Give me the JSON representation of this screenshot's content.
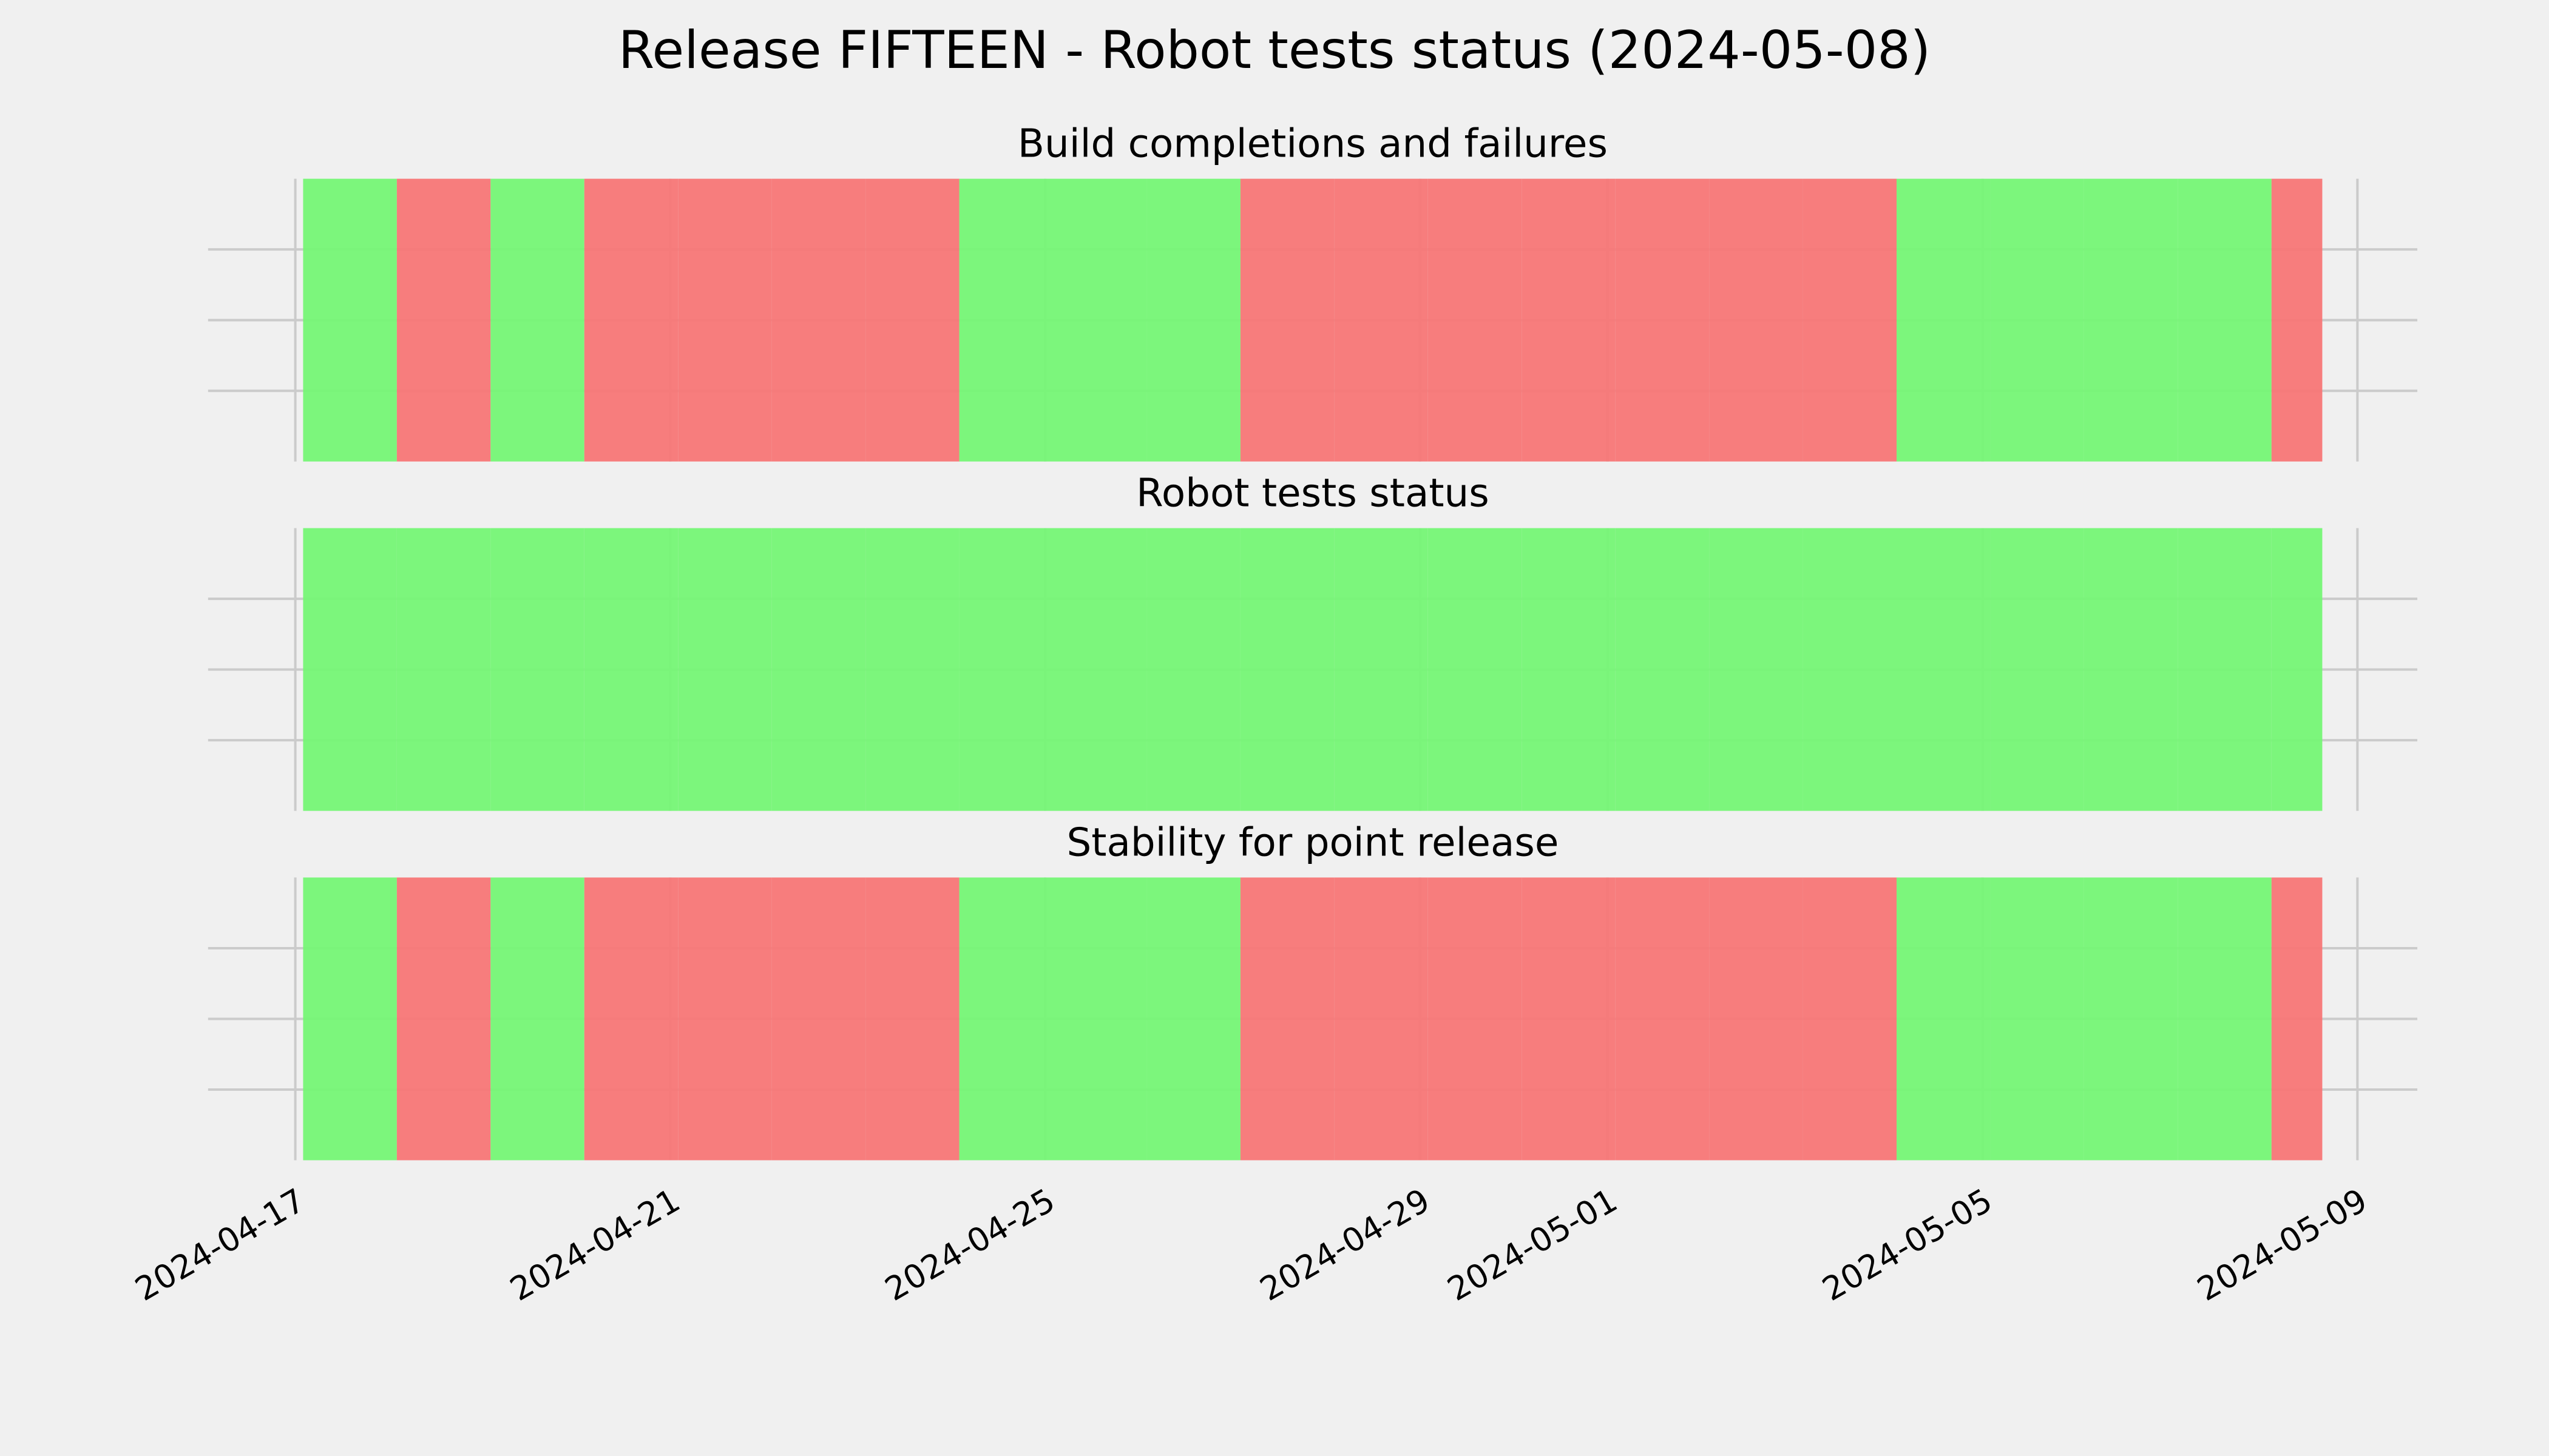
{
  "title": "Release FIFTEEN - Robot tests status (2024-05-08)",
  "chart_data": [
    {
      "type": "timeline",
      "title": "Build completions and failures",
      "x": [
        "2024-04-17T02:00",
        "2024-04-18T02:00",
        "2024-04-19T02:00",
        "2024-04-20T02:00",
        "2024-04-21T02:00",
        "2024-04-22T02:00",
        "2024-04-23T02:00",
        "2024-04-24T02:00",
        "2024-04-25T02:00",
        "2024-04-26T02:00",
        "2024-04-27T02:00",
        "2024-04-28T02:00",
        "2024-04-29T02:00",
        "2024-04-30T02:00",
        "2024-05-01T02:00",
        "2024-05-02T02:00",
        "2024-05-03T02:00",
        "2024-05-04T02:00",
        "2024-05-05T02:00",
        "2024-05-06T02:00",
        "2024-05-07T02:00",
        "2024-05-08T02:00"
      ],
      "x_end": "2024-05-08T15:00",
      "values": [
        1,
        0,
        1,
        0,
        0,
        0,
        0,
        1,
        1,
        1,
        0,
        0,
        0,
        0,
        0,
        0,
        0,
        1,
        1,
        1,
        1,
        0
      ],
      "color_pass": "#75f575",
      "color_fail": "#f77676",
      "xlim": [
        "2024-04-16T01:40",
        "2024-05-09T15:20"
      ],
      "ylim": [
        0,
        1
      ],
      "xticks": [
        "2024-04-17",
        "2024-04-21",
        "2024-04-25",
        "2024-04-29",
        "2024-05-01",
        "2024-05-05",
        "2024-05-09"
      ],
      "ygrid": [
        0.25,
        0.5,
        0.75
      ],
      "grid": true
    },
    {
      "type": "timeline",
      "title": "Robot tests status",
      "x": [
        "2024-04-17T02:00",
        "2024-04-18T02:00",
        "2024-04-19T02:00",
        "2024-04-20T02:00",
        "2024-04-21T02:00",
        "2024-04-22T02:00",
        "2024-04-23T02:00",
        "2024-04-24T02:00",
        "2024-04-25T02:00",
        "2024-04-26T02:00",
        "2024-04-27T02:00",
        "2024-04-28T02:00",
        "2024-04-29T02:00",
        "2024-04-30T02:00",
        "2024-05-01T02:00",
        "2024-05-02T02:00",
        "2024-05-03T02:00",
        "2024-05-04T02:00",
        "2024-05-05T02:00",
        "2024-05-06T02:00",
        "2024-05-07T02:00",
        "2024-05-08T02:00"
      ],
      "x_end": "2024-05-08T15:00",
      "values": [
        1,
        1,
        1,
        1,
        1,
        1,
        1,
        1,
        1,
        1,
        1,
        1,
        1,
        1,
        1,
        1,
        1,
        1,
        1,
        1,
        1,
        1
      ],
      "color_pass": "#75f575",
      "color_fail": "#f77676",
      "xlim": [
        "2024-04-16T01:40",
        "2024-05-09T15:20"
      ],
      "ylim": [
        0,
        1
      ],
      "xticks": [
        "2024-04-17",
        "2024-04-21",
        "2024-04-25",
        "2024-04-29",
        "2024-05-01",
        "2024-05-05",
        "2024-05-09"
      ],
      "ygrid": [
        0.25,
        0.5,
        0.75
      ],
      "grid": true
    },
    {
      "type": "timeline",
      "title": "Stability for point release",
      "x": [
        "2024-04-17T02:00",
        "2024-04-18T02:00",
        "2024-04-19T02:00",
        "2024-04-20T02:00",
        "2024-04-21T02:00",
        "2024-04-22T02:00",
        "2024-04-23T02:00",
        "2024-04-24T02:00",
        "2024-04-25T02:00",
        "2024-04-26T02:00",
        "2024-04-27T02:00",
        "2024-04-28T02:00",
        "2024-04-29T02:00",
        "2024-04-30T02:00",
        "2024-05-01T02:00",
        "2024-05-02T02:00",
        "2024-05-03T02:00",
        "2024-05-04T02:00",
        "2024-05-05T02:00",
        "2024-05-06T02:00",
        "2024-05-07T02:00",
        "2024-05-08T02:00"
      ],
      "x_end": "2024-05-08T15:00",
      "values": [
        1,
        0,
        1,
        0,
        0,
        0,
        0,
        1,
        1,
        1,
        0,
        0,
        0,
        0,
        0,
        0,
        0,
        1,
        1,
        1,
        1,
        0
      ],
      "color_pass": "#75f575",
      "color_fail": "#f77676",
      "xlim": [
        "2024-04-16T01:40",
        "2024-05-09T15:20"
      ],
      "ylim": [
        0,
        1
      ],
      "xticks": [
        "2024-04-17",
        "2024-04-21",
        "2024-04-25",
        "2024-04-29",
        "2024-05-01",
        "2024-05-05",
        "2024-05-09"
      ],
      "ygrid": [
        0.25,
        0.5,
        0.75
      ],
      "grid": true
    }
  ]
}
